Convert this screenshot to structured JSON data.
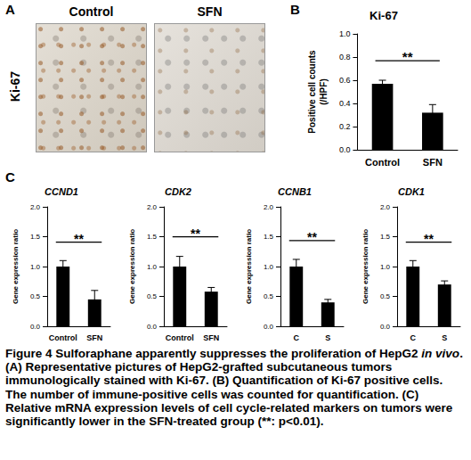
{
  "figure": {
    "panel_labels": [
      "A",
      "B",
      "C"
    ],
    "image_titles": [
      "Control",
      "SFN"
    ],
    "image_row_label": "Ki-67",
    "caption": [
      {
        "text": "Figure 4 Sulforaphane apparently suppresses the proliferation of HepG2 "
      },
      {
        "text": "in vivo",
        "italic": true
      },
      {
        "text": ". (A) Representative pictures of HepG2-grafted subcutaneous tumors immunologically stained with Ki-67. (B) Quantification of Ki-67 positive cells. The number of immune-positive cells was counted for quantification. (C) Relative mRNA expression levels of cell cycle-related markers on tumors were significantly lower in the SFN-treated group (**: p<0.01)."
      }
    ]
  },
  "chart_data": [
    {
      "type": "bar",
      "title": "Ki-67",
      "ylabel": "Positive cell counts\n(/HPF)",
      "categories": [
        "Control",
        "SFN"
      ],
      "values": [
        0.57,
        0.32
      ],
      "errors": [
        0.03,
        0.07
      ],
      "color": "#000000",
      "annotation": "**",
      "ylim": [
        0,
        1.0
      ],
      "yticks": [
        {
          "value": 0,
          "label": "0.0"
        },
        0.2,
        0.4,
        0.6,
        0.8,
        {
          "value": 1.0,
          "label": "1.0"
        }
      ],
      "grid": false
    },
    {
      "type": "bar",
      "title": "CCND1",
      "ylabel": "Gene expression ratio",
      "categories": [
        "Control",
        "SFN"
      ],
      "values": [
        1.0,
        0.45
      ],
      "errors": [
        0.1,
        0.15
      ],
      "color": "#000000",
      "annotation": "**",
      "ylim": [
        0,
        2.0
      ],
      "yticks": [
        {
          "value": 0,
          "label": "0.0"
        },
        0.5,
        {
          "value": 1.0,
          "label": "1.0"
        },
        1.5,
        {
          "value": 2.0,
          "label": "2.0"
        }
      ],
      "grid": false
    },
    {
      "type": "bar",
      "title": "CDK2",
      "ylabel": "Gene expression ratio",
      "categories": [
        "Control",
        "SFN"
      ],
      "values": [
        1.0,
        0.58
      ],
      "errors": [
        0.17,
        0.07
      ],
      "color": "#000000",
      "annotation": "**",
      "ylim": [
        0,
        2.0
      ],
      "yticks": [
        {
          "value": 0,
          "label": "0.0"
        },
        0.5,
        {
          "value": 1.0,
          "label": "1.0"
        },
        1.5,
        {
          "value": 2.0,
          "label": "2.0"
        }
      ],
      "grid": false
    },
    {
      "type": "bar",
      "title": "CCNB1",
      "ylabel": "Gene expression ratio",
      "categories": [
        "C",
        "S"
      ],
      "values": [
        1.0,
        0.4
      ],
      "errors": [
        0.12,
        0.05
      ],
      "color": "#000000",
      "annotation": "**",
      "ylim": [
        0,
        2.0
      ],
      "yticks": [
        {
          "value": 0,
          "label": "0.0"
        },
        0.5,
        {
          "value": 1.0,
          "label": "1.0"
        },
        1.5,
        {
          "value": 2.0,
          "label": "2.0"
        }
      ],
      "grid": false
    },
    {
      "type": "bar",
      "title": "CDK1",
      "ylabel": "Gene expression ratio",
      "categories": [
        "C",
        "S"
      ],
      "values": [
        1.0,
        0.7
      ],
      "errors": [
        0.1,
        0.06
      ],
      "color": "#000000",
      "annotation": "**",
      "ylim": [
        0,
        2.0
      ],
      "yticks": [
        {
          "value": 0,
          "label": "0.0"
        },
        0.5,
        {
          "value": 1.0,
          "label": "1.0"
        },
        1.5,
        {
          "value": 2.0,
          "label": "2.0"
        }
      ],
      "grid": false
    }
  ]
}
